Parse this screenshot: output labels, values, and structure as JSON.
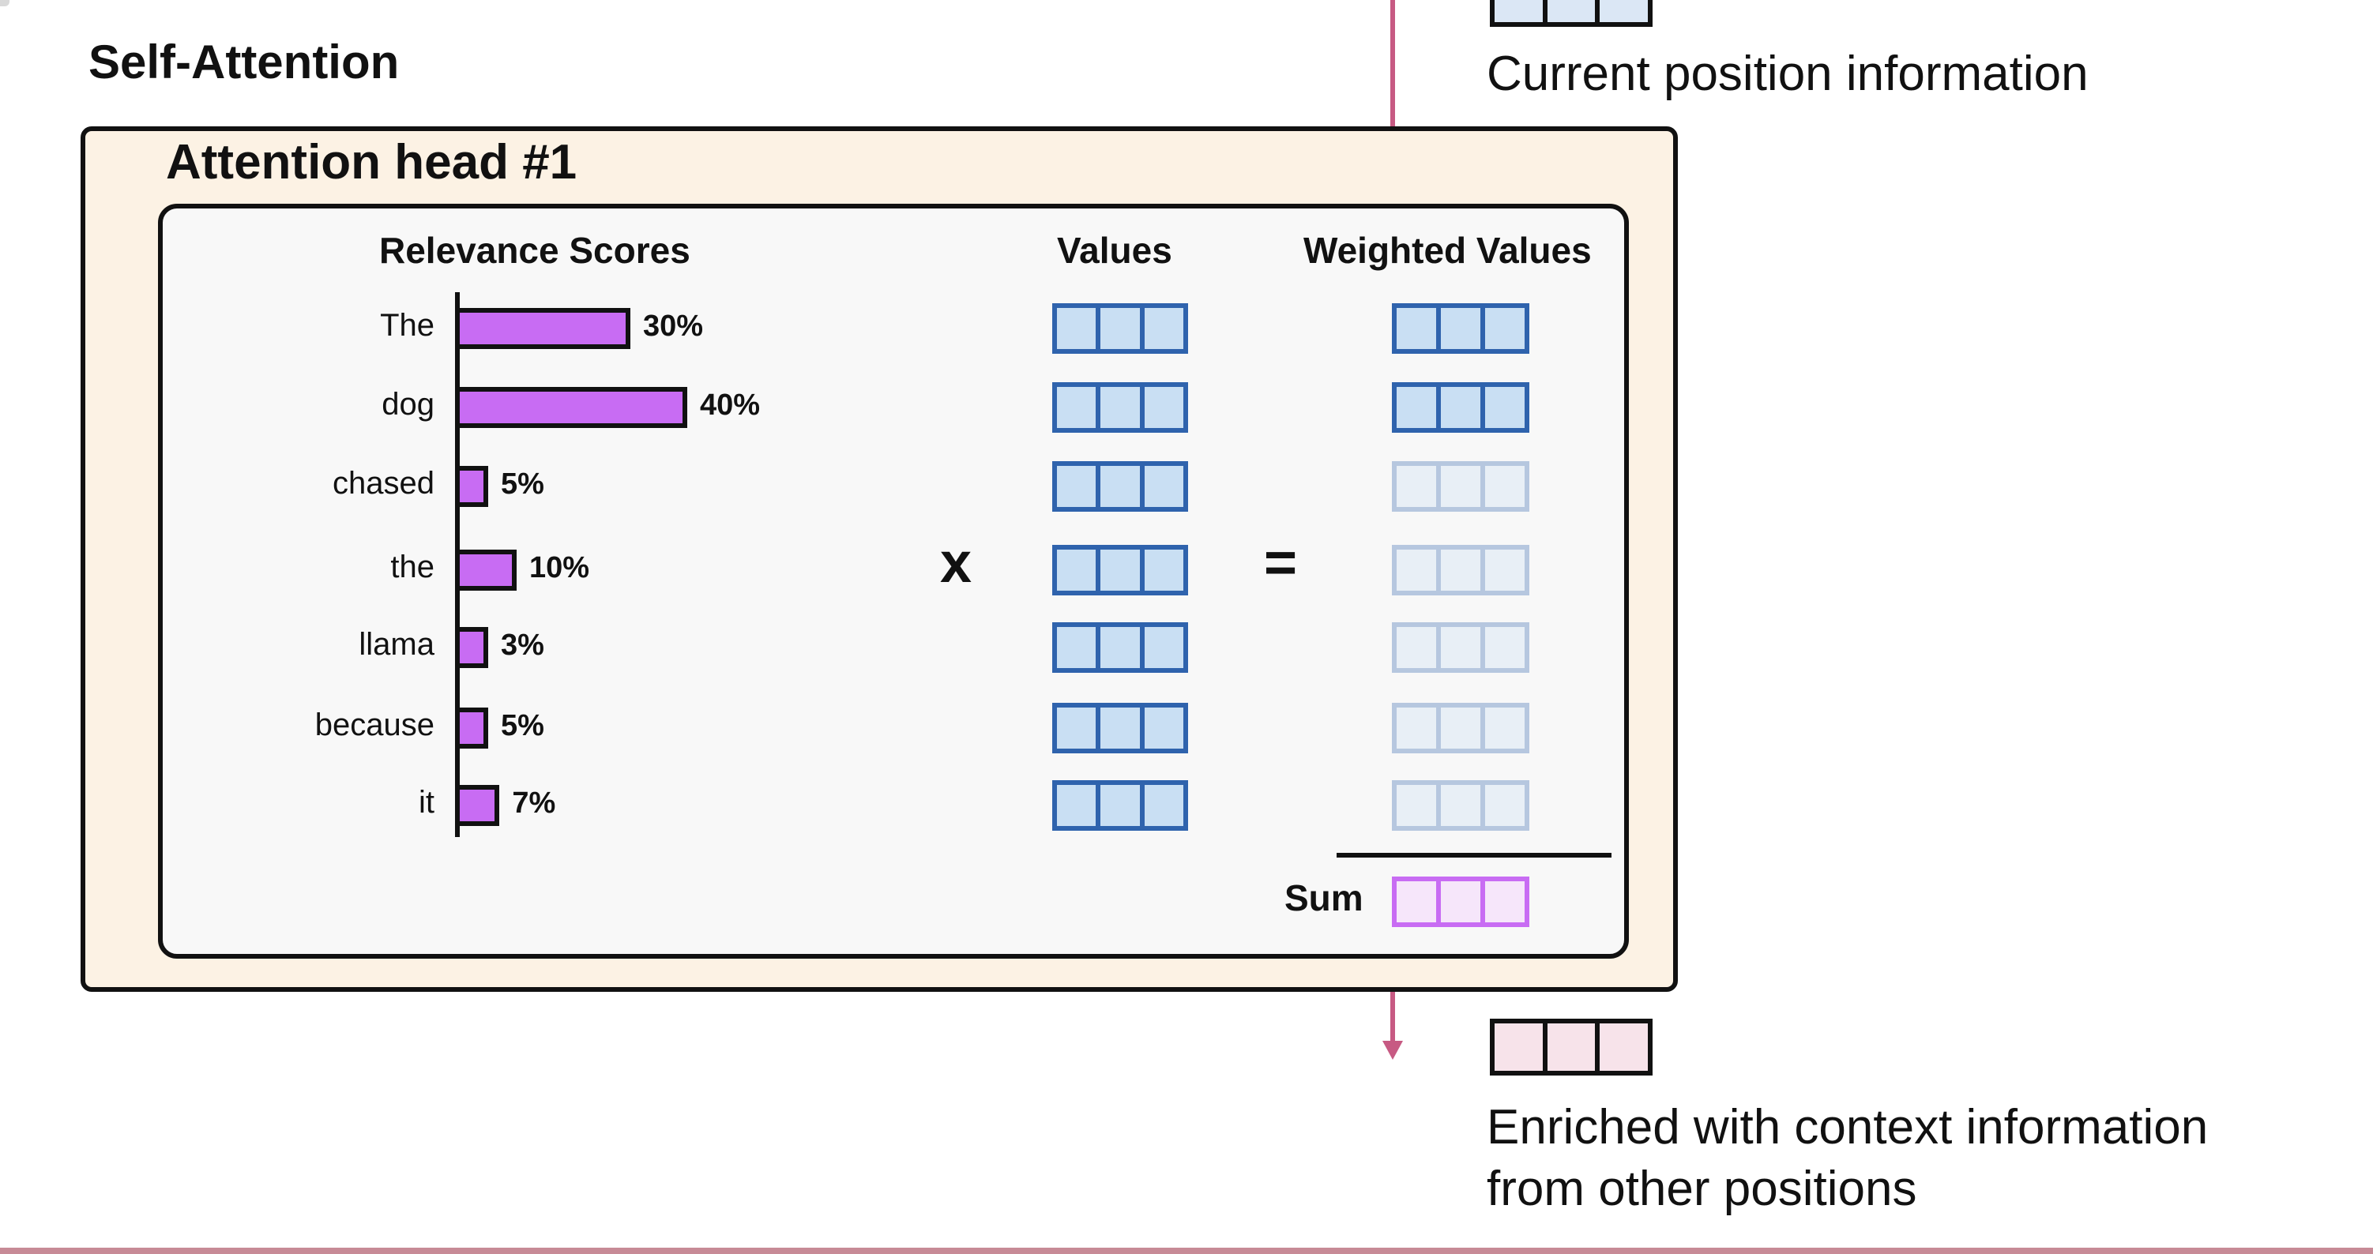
{
  "section_title": "Self-Attention",
  "head_title": "Attention head #1",
  "columns": {
    "scores": "Relevance Scores",
    "values": "Values",
    "weighted": "Weighted Values"
  },
  "tokens": [
    {
      "label": "The",
      "percent": 30,
      "percent_label": "30%"
    },
    {
      "label": "dog",
      "percent": 40,
      "percent_label": "40%"
    },
    {
      "label": "chased",
      "percent": 5,
      "percent_label": "5%"
    },
    {
      "label": "the",
      "percent": 10,
      "percent_label": "10%"
    },
    {
      "label": "llama",
      "percent": 3,
      "percent_label": "3%"
    },
    {
      "label": "because",
      "percent": 5,
      "percent_label": "5%"
    },
    {
      "label": "it",
      "percent": 7,
      "percent_label": "7%"
    }
  ],
  "operators": {
    "times": "x",
    "equals": "="
  },
  "sum_label": "Sum",
  "labels": {
    "current": "Current position information",
    "enriched_line1": "Enriched with context information",
    "enriched_line2": "from other positions"
  },
  "colors": {
    "bar": "#c86cf3",
    "value_border": "#2f63ad",
    "value_fill": "#c9dff3",
    "flow_arrow": "#c75a83",
    "head_background": "#fcf2e4"
  }
}
